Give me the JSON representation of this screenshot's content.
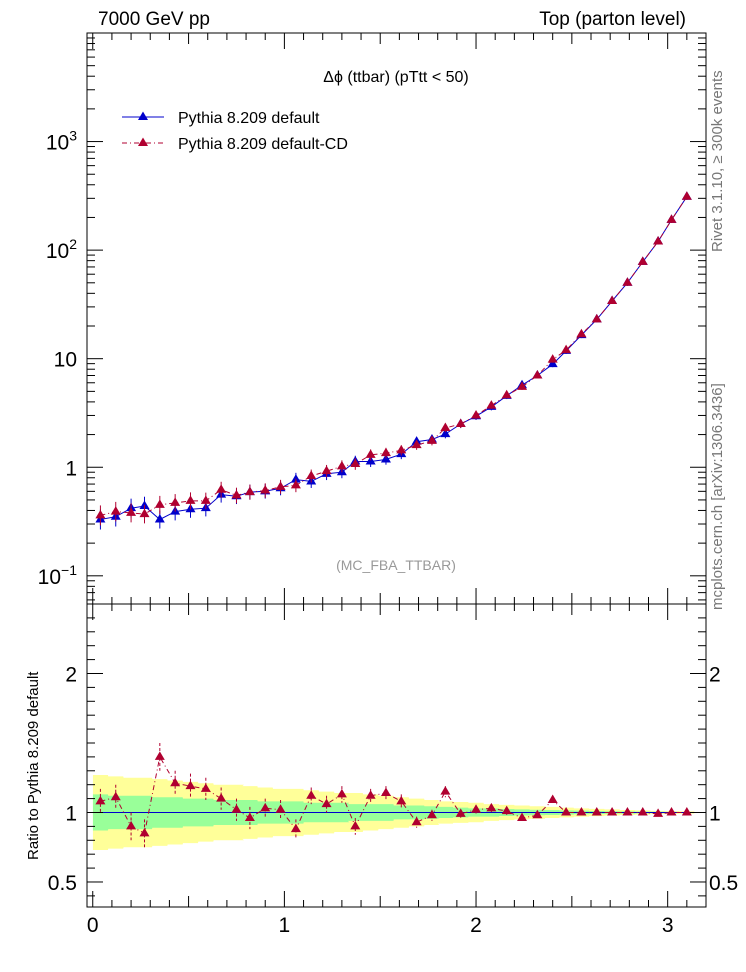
{
  "header": {
    "left": "7000 GeV pp",
    "right": "Top (parton level)"
  },
  "side_labels": {
    "top": "Rivet 3.1.10, ≥ 300k events",
    "bottom": "mcplots.cern.ch [arXiv:1306.3436]"
  },
  "chart_data": [
    {
      "type": "scatter",
      "panel": "main",
      "title": "Δϕ (ttbar) (pTtt < 50)",
      "watermark": "(MC_FBA_TTBAR)",
      "xlabel": "",
      "ylabel": "",
      "xlim": [
        -0.03,
        3.2
      ],
      "ylim": [
        0.055,
        10000
      ],
      "log_y": true,
      "y_ticks": [
        {
          "value": 0.1,
          "base": "10",
          "exp": "−1"
        },
        {
          "value": 1,
          "base": "1",
          "exp": ""
        },
        {
          "value": 10,
          "base": "10",
          "exp": ""
        },
        {
          "value": 100,
          "base": "10",
          "exp": "2"
        },
        {
          "value": 1000,
          "base": "10",
          "exp": "3"
        }
      ],
      "legend_position": "top-left",
      "x": [
        0.04,
        0.12,
        0.2,
        0.27,
        0.35,
        0.43,
        0.51,
        0.59,
        0.67,
        0.75,
        0.82,
        0.9,
        0.98,
        1.06,
        1.14,
        1.22,
        1.3,
        1.37,
        1.45,
        1.53,
        1.61,
        1.69,
        1.77,
        1.84,
        1.92,
        2.0,
        2.08,
        2.16,
        2.24,
        2.32,
        2.4,
        2.47,
        2.55,
        2.63,
        2.71,
        2.79,
        2.87,
        2.95,
        3.02,
        3.1
      ],
      "series": [
        {
          "name": "Pythia 8.209 default",
          "color": "#0000cc",
          "line": "solid",
          "marker": "triangle",
          "values": [
            0.33,
            0.35,
            0.42,
            0.44,
            0.33,
            0.39,
            0.41,
            0.42,
            0.56,
            0.54,
            0.59,
            0.6,
            0.64,
            0.77,
            0.74,
            0.87,
            0.9,
            1.13,
            1.13,
            1.18,
            1.32,
            1.72,
            1.8,
            2.02,
            2.5,
            2.95,
            3.6,
            4.55,
            5.7,
            7.0,
            8.9,
            11.8,
            16.5,
            23.0,
            34.0,
            50.0,
            78.0,
            120.0,
            190.0,
            310.0
          ]
        },
        {
          "name": "Pythia 8.209 default-CD",
          "color": "#b00030",
          "line": "dash-dot",
          "marker": "triangle",
          "values": [
            0.36,
            0.39,
            0.38,
            0.37,
            0.45,
            0.47,
            0.49,
            0.49,
            0.62,
            0.55,
            0.59,
            0.61,
            0.66,
            0.68,
            0.83,
            0.92,
            1.02,
            1.07,
            1.3,
            1.35,
            1.43,
            1.6,
            1.75,
            2.3,
            2.5,
            3.0,
            3.7,
            4.6,
            5.5,
            7.0,
            9.8,
            12.0,
            16.8,
            23.0,
            34.0,
            50.0,
            78.0,
            120.0,
            190.0,
            310.0
          ]
        }
      ]
    },
    {
      "type": "scatter",
      "panel": "ratio",
      "xlabel": "",
      "ylabel": "Ratio to Pythia 8.209 default",
      "xlim": [
        -0.03,
        3.2
      ],
      "ylim": [
        0.32,
        2.5
      ],
      "x_ticks": [
        "0",
        "1",
        "2",
        "3"
      ],
      "y_ticks": [
        "0.5",
        "1",
        "2"
      ],
      "reference_line": 1,
      "bands": [
        {
          "name": "stat+syst",
          "color": "#ffff99",
          "description": "outer uncertainty band"
        },
        {
          "name": "stat",
          "color": "#99ff99",
          "description": "inner uncertainty band"
        }
      ],
      "band_halfwidth_outer": [
        0.27,
        0.26,
        0.25,
        0.25,
        0.24,
        0.23,
        0.22,
        0.21,
        0.2,
        0.2,
        0.19,
        0.18,
        0.17,
        0.17,
        0.16,
        0.15,
        0.14,
        0.14,
        0.13,
        0.12,
        0.11,
        0.1,
        0.09,
        0.08,
        0.075,
        0.07,
        0.06,
        0.055,
        0.05,
        0.045,
        0.04,
        0.035,
        0.03,
        0.026,
        0.022,
        0.018,
        0.015,
        0.012,
        0.01,
        0.008
      ],
      "band_halfwidth_inner": [
        0.13,
        0.12,
        0.12,
        0.12,
        0.11,
        0.11,
        0.1,
        0.1,
        0.09,
        0.09,
        0.09,
        0.08,
        0.08,
        0.08,
        0.07,
        0.07,
        0.07,
        0.06,
        0.06,
        0.06,
        0.05,
        0.05,
        0.045,
        0.04,
        0.035,
        0.03,
        0.03,
        0.025,
        0.022,
        0.02,
        0.018,
        0.015,
        0.013,
        0.011,
        0.009,
        0.008,
        0.006,
        0.005,
        0.004,
        0.003
      ],
      "values": [
        1.08,
        1.11,
        0.9,
        0.85,
        1.4,
        1.21,
        1.19,
        1.17,
        1.1,
        1.02,
        0.96,
        1.03,
        1.02,
        0.88,
        1.12,
        1.06,
        1.13,
        0.9,
        1.12,
        1.14,
        1.08,
        0.93,
        0.98,
        1.15,
        0.99,
        1.02,
        1.03,
        1.01,
        0.96,
        0.98,
        1.09,
        1.0,
        1.0,
        1.0,
        1.0,
        1.0,
        1.0,
        0.99,
        1.0,
        1.0
      ],
      "errors": [
        0.09,
        0.09,
        0.1,
        0.1,
        0.1,
        0.09,
        0.09,
        0.08,
        0.08,
        0.08,
        0.08,
        0.07,
        0.07,
        0.07,
        0.06,
        0.06,
        0.06,
        0.06,
        0.05,
        0.05,
        0.05,
        0.04,
        0.04,
        0.04,
        0.03,
        0.03,
        0.03,
        0.03,
        0.02,
        0.02,
        0.02,
        0.02,
        0.01,
        0.01,
        0.01,
        0.01,
        0.01,
        0.01,
        0.01,
        0.01
      ],
      "marker_color": "#b00030"
    }
  ]
}
